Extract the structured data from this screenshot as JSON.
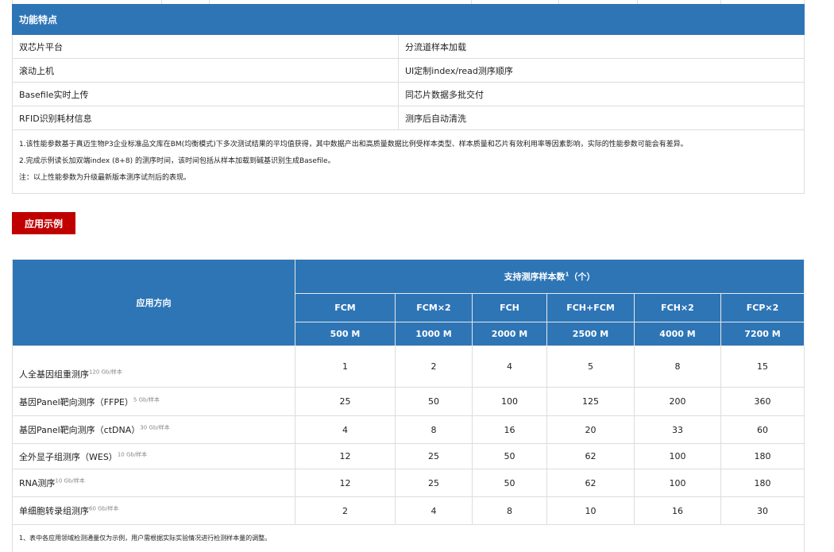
{
  "features": {
    "header": "功能特点",
    "rows": [
      [
        "双芯片平台",
        "分流道样本加载"
      ],
      [
        "滚动上机",
        "UI定制index/read测序顺序"
      ],
      [
        "Basefile实时上传",
        "同芯片数据多批交付"
      ],
      [
        "RFID识别耗材信息",
        "测序后自动清洗"
      ]
    ],
    "notes": [
      "1.该性能参数基于真迈生物P3企业标准品文库在BM(均衡模式)下多次测试结果的平均值获得，其中数据产出和高质量数据比例受样本类型、样本质量和芯片有效利用率等因素影响，实际的性能参数可能会有差异。",
      "2.完成示例读长加双端index (8+8) 的测序时间，该时间包括从样本加载到碱基识别生成Basefile。",
      "注：以上性能参数为升级最新版本测序试剂后的表现。"
    ]
  },
  "section_button": "应用示例",
  "apps": {
    "col_header": "应用方向",
    "group_header": "支持测序样本数",
    "group_sup": "1",
    "group_suffix": "（个）",
    "chips": [
      "FCM",
      "FCM×2",
      "FCH",
      "FCH+FCM",
      "FCH×2",
      "FCP×2"
    ],
    "outputs": [
      "500 M",
      "1000 M",
      "2000 M",
      "2500 M",
      "4000 M",
      "7200 M"
    ],
    "rows": [
      {
        "name": "人全基因组重测序",
        "sup": "120 Gb/样本",
        "values": [
          "1",
          "2",
          "4",
          "5",
          "8",
          "15"
        ]
      },
      {
        "name": "基因Panel靶向测序（FFPE）",
        "sup": "5 Gb/样本",
        "values": [
          "25",
          "50",
          "100",
          "125",
          "200",
          "360"
        ]
      },
      {
        "name": "基因Panel靶向测序（ctDNA）",
        "sup": "30 Gb/样本",
        "values": [
          "4",
          "8",
          "16",
          "20",
          "33",
          "60"
        ]
      },
      {
        "name": "全外显子组测序（WES）",
        "sup": "10 Gb/样本",
        "values": [
          "12",
          "25",
          "50",
          "62",
          "100",
          "180"
        ]
      },
      {
        "name": "RNA测序",
        "sup": "10 Gb/样本",
        "values": [
          "12",
          "25",
          "50",
          "62",
          "100",
          "180"
        ]
      },
      {
        "name": "单细胞转录组测序",
        "sup": "60 Gb/样本",
        "values": [
          "2",
          "4",
          "8",
          "10",
          "16",
          "30"
        ]
      }
    ],
    "footnote": "1、表中各应用领域检测通量仅为示例，用户需根据实际实验情况进行检测样本量的调整。"
  },
  "colors": {
    "header_blue": "#2e75b6",
    "button_red": "#c00000"
  }
}
